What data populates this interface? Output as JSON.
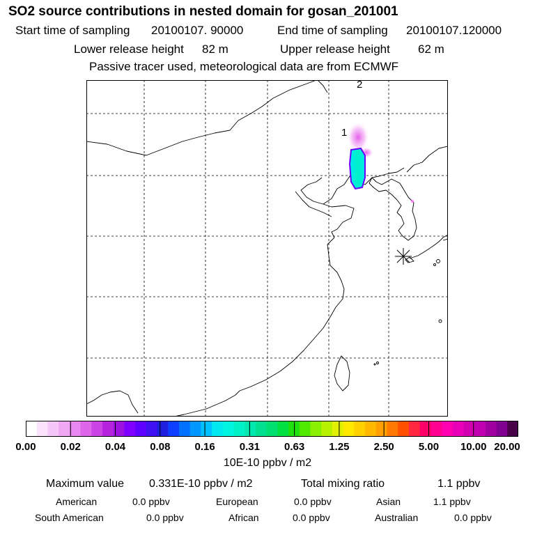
{
  "header": {
    "title": "SO2 source contributions in nested domain for gosan_201001",
    "start_label": "Start time of sampling",
    "start_value": "20100107. 90000",
    "end_label": "End time of sampling",
    "end_value": "20100107.120000",
    "lower_label": "Lower release height",
    "lower_value": "82 m",
    "upper_label": "Upper release height",
    "upper_value": "62 m",
    "tracer_note": "Passive tracer used, meteorological data are from ECMWF"
  },
  "map": {
    "markers": [
      {
        "label": "1",
        "role": "release point 1"
      },
      {
        "label": "2",
        "role": "release point 2"
      }
    ],
    "receptor_symbol": "asterisk"
  },
  "legend": {
    "ticks": [
      "0.00",
      "0.02",
      "0.04",
      "0.08",
      "0.16",
      "0.31",
      "0.63",
      "1.25",
      "2.50",
      "5.00",
      "10.00",
      "20.00"
    ],
    "colors": [
      "#ffffff",
      "#fbe3fb",
      "#f7c6f8",
      "#f0a8f4",
      "#e887f0",
      "#dd66ea",
      "#cc44e4",
      "#b624e0",
      "#9c12df",
      "#8000ff",
      "#6000ff",
      "#4010f0",
      "#2020e0",
      "#1040ff",
      "#0070ff",
      "#0098ff",
      "#00c0ff",
      "#00e8f0",
      "#00f5e0",
      "#00f0c8",
      "#00e8b0",
      "#00e090",
      "#00e070",
      "#00e040",
      "#20e010",
      "#50e800",
      "#88f000",
      "#b8f000",
      "#e0f000",
      "#ffe800",
      "#ffd000",
      "#ffb800",
      "#ffa000",
      "#ff7800",
      "#ff5000",
      "#ff2840",
      "#ff0068",
      "#ff0090",
      "#ff00b0",
      "#e800b8",
      "#d000b0",
      "#c000b0",
      "#a000a0",
      "#800090",
      "#480048"
    ],
    "unit": "10E-10 ppbv / m2"
  },
  "summary": {
    "max_label": "Maximum value",
    "max_value": "0.331E-10 ppbv / m2",
    "total_label": "Total mixing ratio",
    "total_value": "1.1 ppbv",
    "regions": [
      {
        "name": "American",
        "value": "0.0 ppbv"
      },
      {
        "name": "European",
        "value": "0.0 ppbv"
      },
      {
        "name": "Asian",
        "value": "1.1 ppbv"
      },
      {
        "name": "South American",
        "value": "0.0 ppbv"
      },
      {
        "name": "African",
        "value": "0.0 ppbv"
      },
      {
        "name": "Australian",
        "value": "0.0 ppbv"
      }
    ]
  }
}
